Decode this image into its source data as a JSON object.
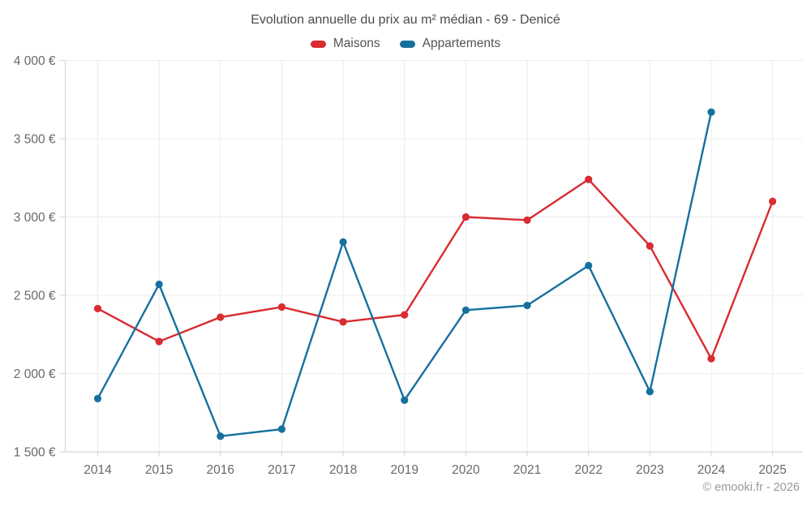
{
  "header": {
    "title": "Evolution annuelle du prix au m² médian - 69 - Denicé"
  },
  "legend": [
    {
      "label": "Maisons",
      "color": "#d92b30"
    },
    {
      "label": "Appartements",
      "color": "#16709e"
    }
  ],
  "footer": {
    "credit": "© emooki.fr - 2026"
  },
  "chart_data": {
    "type": "line",
    "title": "Evolution annuelle du prix au m² médian - 69 - Denicé",
    "xlabel": "",
    "ylabel": "",
    "categories": [
      "2014",
      "2015",
      "2016",
      "2017",
      "2018",
      "2019",
      "2020",
      "2021",
      "2022",
      "2023",
      "2024",
      "2025"
    ],
    "series": [
      {
        "name": "Maisons",
        "color": "#d92b30",
        "values": [
          2415,
          2205,
          2360,
          2425,
          2330,
          2375,
          3000,
          2980,
          3240,
          2815,
          2095,
          3100
        ]
      },
      {
        "name": "Appartements",
        "color": "#16709e",
        "values": [
          1840,
          2570,
          1600,
          1645,
          2840,
          1830,
          2405,
          2435,
          2690,
          1885,
          3670,
          null
        ]
      }
    ],
    "y_axis": {
      "min": 1500,
      "max": 4000,
      "step": 500,
      "tick_labels": [
        "1 500 €",
        "2 000 €",
        "2 500 €",
        "3 000 €",
        "3 500 €",
        "4 000 €"
      ]
    },
    "grid": true,
    "legend_position": "top",
    "colors": {
      "grid_line": "#ececec",
      "axis_line": "#d6d6d6",
      "tick_text": "#696969"
    }
  }
}
